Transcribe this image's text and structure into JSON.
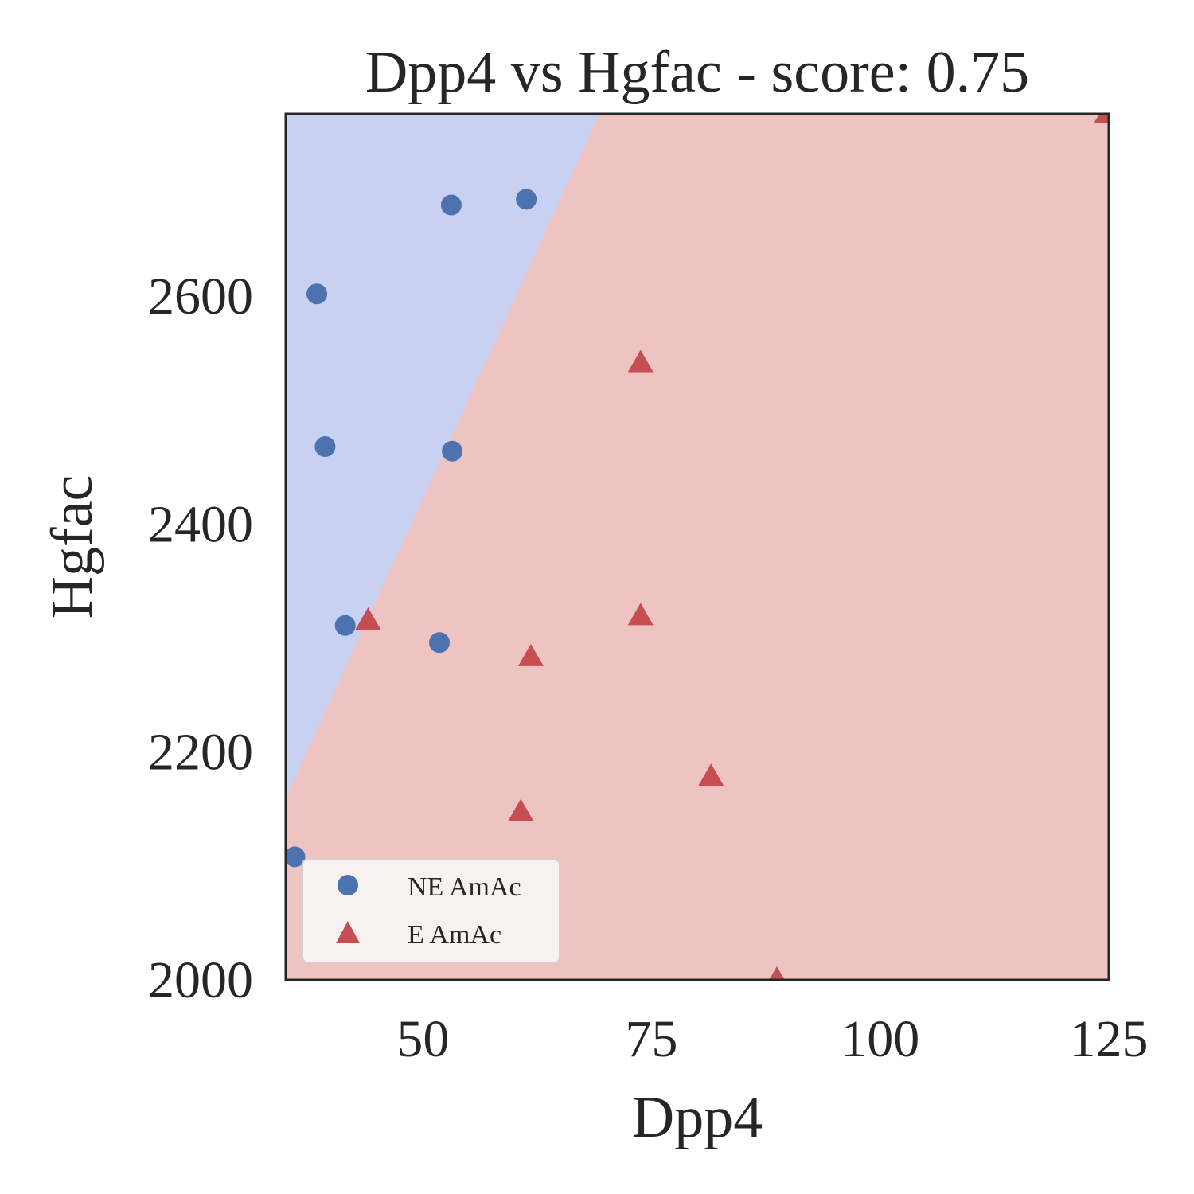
{
  "chart_data": {
    "type": "scatter",
    "title": "Dpp4 vs Hgfac - score: 0.75",
    "xlabel": "Dpp4",
    "ylabel": "Hgfac",
    "xlim": [
      35,
      125
    ],
    "ylim": [
      2000,
      2760
    ],
    "xticks": [
      50,
      75,
      100,
      125
    ],
    "yticks": [
      2000,
      2200,
      2400,
      2600
    ],
    "grid": false,
    "legend_position": "lower-left",
    "decision_boundary": {
      "points": [
        [
          35,
          2160
        ],
        [
          69.3,
          2760
        ]
      ],
      "left_region_class": "NE AmAc",
      "right_region_class": "E AmAc"
    },
    "colors": {
      "NE AmAc": "#4c72b0",
      "E AmAc": "#c44e52",
      "region_ne": "#c8d1f1",
      "region_e": "#eec4c3",
      "axes_edge": "#262626"
    },
    "series": [
      {
        "name": "NE AmAc",
        "marker": "circle",
        "points": [
          [
            53.1,
            2680
          ],
          [
            61.3,
            2685
          ],
          [
            38.4,
            2602
          ],
          [
            39.3,
            2468
          ],
          [
            53.2,
            2464
          ],
          [
            41.5,
            2311
          ],
          [
            51.8,
            2296
          ],
          [
            36.0,
            2108
          ]
        ]
      },
      {
        "name": "E AmAc",
        "marker": "triangle",
        "points": [
          [
            73.8,
            2541
          ],
          [
            44.0,
            2315
          ],
          [
            73.8,
            2319
          ],
          [
            61.8,
            2283
          ],
          [
            81.5,
            2178
          ],
          [
            60.7,
            2147
          ],
          [
            88.7,
            2000
          ],
          [
            124.8,
            2760
          ]
        ]
      }
    ]
  }
}
